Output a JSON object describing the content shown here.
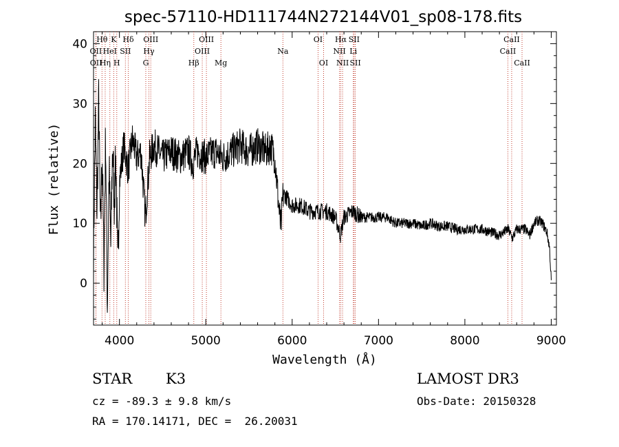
{
  "chart_data": {
    "type": "line",
    "title": "spec-57110-HD111744N272144V01_sp08-178.fits",
    "xlabel": "Wavelength (Å)",
    "ylabel": "Flux (relative)",
    "xlim": [
      3700,
      9060
    ],
    "ylim": [
      -7,
      42
    ],
    "xticks": [
      4000,
      5000,
      6000,
      7000,
      8000,
      9000
    ],
    "xtick_labels": [
      "4000",
      "5000",
      "6000",
      "7000",
      "8000",
      "9000"
    ],
    "yticks": [
      0,
      10,
      20,
      30,
      40
    ],
    "ytick_labels": [
      "0",
      "10",
      "20",
      "30",
      "40"
    ],
    "grid": false,
    "series": [
      {
        "name": "flux",
        "color": "#000000",
        "x": [
          3700,
          3720,
          3740,
          3760,
          3780,
          3800,
          3820,
          3840,
          3860,
          3880,
          3900,
          3920,
          3940,
          3960,
          3980,
          4000,
          4050,
          4100,
          4150,
          4200,
          4250,
          4300,
          4350,
          4400,
          4450,
          4500,
          4600,
          4700,
          4800,
          4850,
          4900,
          5000,
          5100,
          5200,
          5300,
          5400,
          5500,
          5600,
          5700,
          5750,
          5800,
          5850,
          5870,
          5890,
          5900,
          5950,
          6000,
          6100,
          6200,
          6300,
          6400,
          6500,
          6560,
          6600,
          6700,
          6800,
          6900,
          7000,
          7100,
          7200,
          7300,
          7400,
          7500,
          7600,
          7700,
          7800,
          7900,
          8000,
          8100,
          8200,
          8300,
          8400,
          8500,
          8550,
          8600,
          8700,
          8750,
          8800,
          8850,
          8900,
          8950,
          8980,
          9000
        ],
        "values": [
          5,
          27,
          12,
          31,
          8,
          22,
          3,
          25,
          -4,
          19,
          6,
          23,
          14,
          21,
          2,
          17,
          23,
          19,
          24,
          21,
          22,
          11,
          21,
          23,
          22,
          21,
          22,
          21,
          22,
          20,
          22,
          21,
          22,
          21,
          22,
          23,
          22,
          23,
          22,
          23,
          21,
          12,
          9,
          14,
          15,
          14,
          13,
          13,
          12,
          12,
          12,
          11,
          8,
          11,
          12,
          11,
          11,
          11,
          11,
          10,
          10,
          10,
          9.5,
          10,
          9.5,
          9.5,
          9,
          9,
          9,
          9,
          8.5,
          8,
          9,
          7.5,
          9,
          9,
          8,
          10,
          10.5,
          10,
          8.5,
          6,
          0.5
        ]
      }
    ],
    "lines": [
      {
        "name": "Hθ",
        "x": 3798,
        "row": 0
      },
      {
        "name": "OII",
        "x": 3727,
        "row": 1
      },
      {
        "name": "OII",
        "x": 3729,
        "row": 2
      },
      {
        "name": "Hη",
        "x": 3835,
        "row": 2
      },
      {
        "name": "K",
        "x": 3934,
        "row": 0
      },
      {
        "name": "HeI",
        "x": 3889,
        "row": 1
      },
      {
        "name": "H",
        "x": 3969,
        "row": 2
      },
      {
        "name": "Hδ",
        "x": 4102,
        "row": 0
      },
      {
        "name": "SII",
        "x": 4069,
        "row": 1
      },
      {
        "name": "OIII",
        "x": 4363,
        "row": 0
      },
      {
        "name": "Hγ",
        "x": 4341,
        "row": 1
      },
      {
        "name": "G",
        "x": 4305,
        "row": 2
      },
      {
        "name": "Hβ",
        "x": 4861,
        "row": 2
      },
      {
        "name": "OIII",
        "x": 5007,
        "row": 0
      },
      {
        "name": "OIII",
        "x": 4959,
        "row": 1
      },
      {
        "name": "Mg",
        "x": 5175,
        "row": 2
      },
      {
        "name": "Na",
        "x": 5893,
        "row": 1
      },
      {
        "name": "OI",
        "x": 6300,
        "row": 0
      },
      {
        "name": "OI",
        "x": 6364,
        "row": 2
      },
      {
        "name": "Hα",
        "x": 6563,
        "row": 0
      },
      {
        "name": "NII",
        "x": 6548,
        "row": 1
      },
      {
        "name": "NII",
        "x": 6584,
        "row": 2
      },
      {
        "name": "SII",
        "x": 6717,
        "row": 0
      },
      {
        "name": "Li",
        "x": 6708,
        "row": 1
      },
      {
        "name": "SII",
        "x": 6731,
        "row": 2
      },
      {
        "name": "CaII",
        "x": 8542,
        "row": 0
      },
      {
        "name": "CaII",
        "x": 8498,
        "row": 1
      },
      {
        "name": "CaII",
        "x": 8662,
        "row": 2
      }
    ]
  },
  "info": {
    "class_label": "STAR",
    "subclass": "K3",
    "survey": "LAMOST DR3",
    "cz": "cz = -89.3 ± 9.8 km/s",
    "obs_date": "Obs-Date: 20150328",
    "coords": "RA = 170.14171, DEC =  26.20031"
  }
}
